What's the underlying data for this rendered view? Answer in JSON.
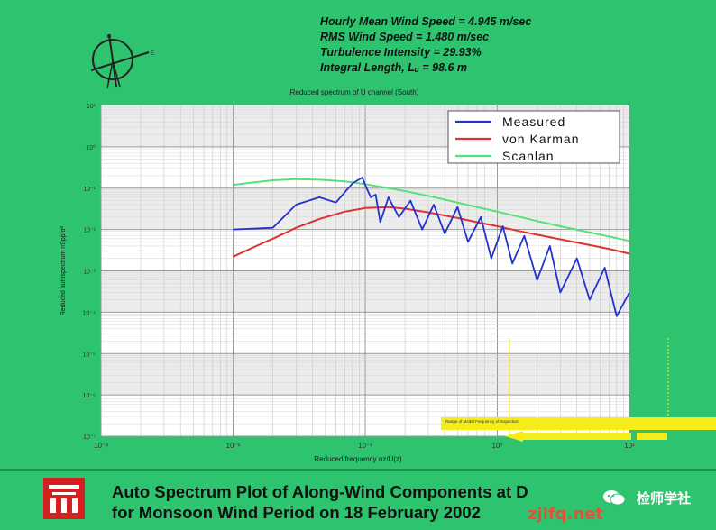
{
  "stats": [
    "Hourly Mean Wind Speed = 4.945 m/sec",
    "RMS Wind Speed = 1.480 m/sec",
    "Turbulence Intensity =  29.93%",
    "Integral Length, Lᵤ = 98.6 m"
  ],
  "caption": {
    "line1": "Auto Spectrum Plot of Along-Wind Components at D",
    "line2": "for Monsoon Wind Period on 18 February 2002"
  },
  "watermark": {
    "text": "检师学社",
    "url": "zjlfq.net"
  },
  "yellow_note": "Range of Model Frequency of Inspection",
  "colors": {
    "background": "#2ec36f",
    "measured": "#2233cc",
    "von_karman": "#dd3333",
    "scanlan": "#55e07a"
  },
  "chart_data": {
    "type": "line",
    "title": "Reduced spectrum of U channel (South)",
    "xlabel": "Reduced frequency nz/U(z)",
    "ylabel": "Reduced autospectrum nSpp/σ²",
    "xscale": "log",
    "yscale": "log",
    "xlim": [
      0.001,
      10
    ],
    "ylim": [
      1e-07,
      10
    ],
    "x_ticks": [
      "10⁻³",
      "10⁻²",
      "10⁻¹",
      "10⁰",
      "10¹"
    ],
    "y_ticks": [
      "10⁻⁷",
      "10⁻⁶",
      "10⁻⁵",
      "10⁻⁴",
      "10⁻³",
      "10⁻²",
      "10⁻¹",
      "10⁰",
      "10¹"
    ],
    "grid": true,
    "legend_position": "top-right",
    "series": [
      {
        "name": "Measured",
        "x": [
          0.01,
          0.02,
          0.03,
          0.045,
          0.06,
          0.08,
          0.095,
          0.1,
          0.11,
          0.12,
          0.13,
          0.15,
          0.18,
          0.22,
          0.27,
          0.33,
          0.4,
          0.5,
          0.6,
          0.75,
          0.9,
          1.1,
          1.3,
          1.6,
          2.0,
          2.5,
          3.0,
          4.0,
          5.0,
          6.5,
          8.0,
          10.0
        ],
        "y": [
          0.01,
          0.011,
          0.04,
          0.06,
          0.045,
          0.13,
          0.18,
          0.12,
          0.06,
          0.07,
          0.015,
          0.06,
          0.02,
          0.05,
          0.01,
          0.04,
          0.008,
          0.035,
          0.005,
          0.02,
          0.002,
          0.012,
          0.0015,
          0.007,
          0.0006,
          0.004,
          0.0003,
          0.002,
          0.0002,
          0.0012,
          8e-05,
          0.0003
        ]
      },
      {
        "name": "von Karman",
        "x": [
          0.01,
          0.015,
          0.02,
          0.03,
          0.045,
          0.07,
          0.1,
          0.15,
          0.2,
          0.3,
          0.5,
          0.7,
          1.0,
          1.5,
          2.0,
          3.0,
          5.0,
          7.0,
          10.0
        ],
        "y": [
          0.0022,
          0.004,
          0.006,
          0.011,
          0.018,
          0.027,
          0.033,
          0.035,
          0.032,
          0.026,
          0.019,
          0.015,
          0.012,
          0.009,
          0.0075,
          0.0058,
          0.0042,
          0.0034,
          0.0026
        ]
      },
      {
        "name": "Scanlan",
        "x": [
          0.01,
          0.015,
          0.02,
          0.03,
          0.045,
          0.07,
          0.1,
          0.15,
          0.2,
          0.3,
          0.5,
          0.7,
          1.0,
          1.5,
          2.0,
          3.0,
          5.0,
          7.0,
          10.0
        ],
        "y": [
          0.12,
          0.14,
          0.155,
          0.165,
          0.16,
          0.145,
          0.125,
          0.1,
          0.085,
          0.065,
          0.045,
          0.035,
          0.027,
          0.02,
          0.016,
          0.012,
          0.0085,
          0.0068,
          0.0053
        ]
      }
    ]
  }
}
